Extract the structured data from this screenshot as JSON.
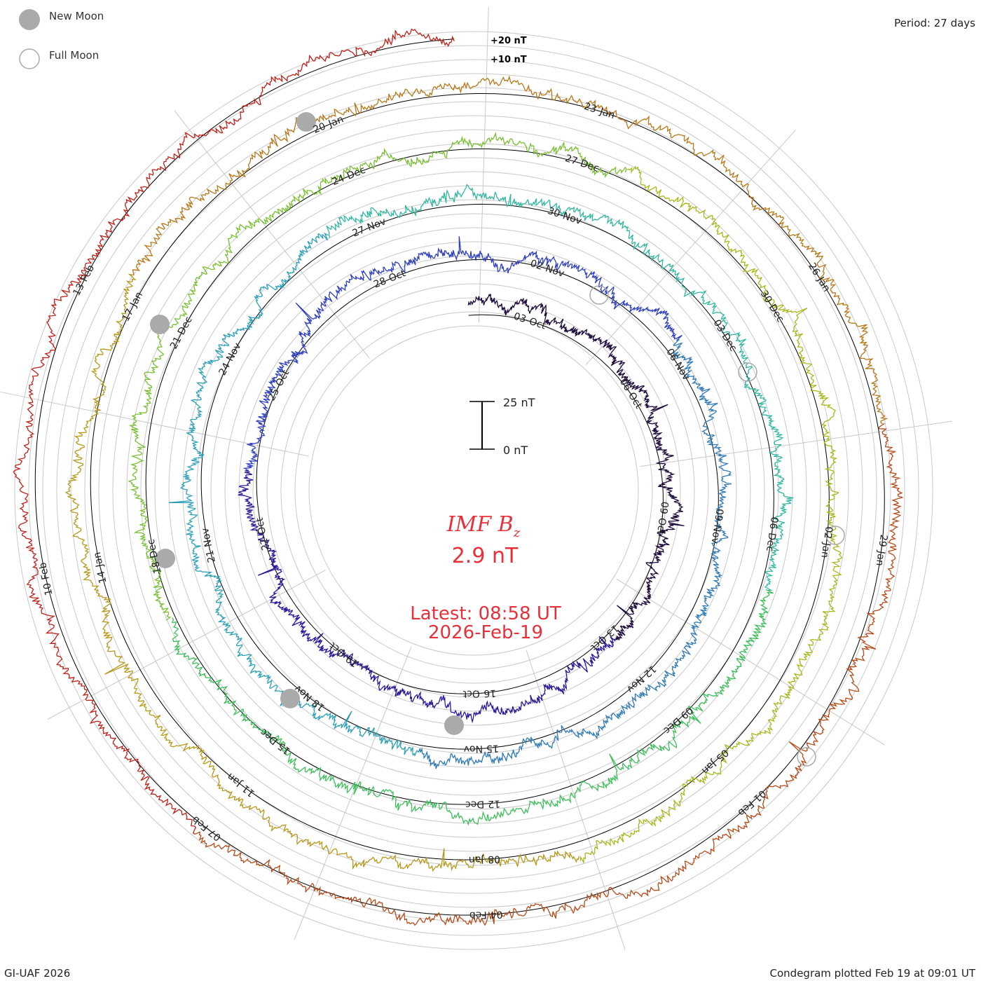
{
  "legend": {
    "new_moon": "New Moon",
    "full_moon": "Full Moon"
  },
  "corners": {
    "period": "Period: 27 days",
    "credit": "GI-UAF 2026",
    "plotted": "Condegram plotted Feb 19 at 09:01 UT"
  },
  "center": {
    "title_main": "IMF B",
    "title_sub": "z",
    "value": "2.9 nT",
    "latest": "Latest: 08:58 UT",
    "date": "2026-Feb-19"
  },
  "scale_bar": {
    "top": "25 nT",
    "bottom": "0 nT"
  },
  "chart_data": {
    "type": "line",
    "title": "IMF Bz",
    "period_days": 27,
    "ring_labels": [
      "+20 nT",
      "+10 nT"
    ],
    "colors": [
      "#1c0a3a",
      "#2a1a9a",
      "#2e3fc0",
      "#2f7ab8",
      "#2aa0b8",
      "#2fb8a0",
      "#3cbf5a",
      "#78c030",
      "#a8b818",
      "#b89818",
      "#b87818",
      "#b84a18",
      "#c02018"
    ],
    "date_labels": [
      "03-Oct",
      "06-Oct",
      "09-Oct",
      "13-Oct",
      "16-Oct",
      "19-Oct",
      "22-Oct",
      "25-Oct",
      "28-Oct",
      "02-Nov",
      "06-Nov",
      "09-Nov",
      "12-Nov",
      "15-Nov",
      "18-Nov",
      "21-Nov",
      "24-Nov",
      "27-Nov",
      "30-Nov",
      "03-Dec",
      "06-Dec",
      "09-Dec",
      "12-Dec",
      "15-Dec",
      "18-Dec",
      "21-Dec",
      "24-Dec",
      "27-Dec",
      "30-Dec",
      "02-Jan",
      "05-Jan",
      "08-Jan",
      "11-Jan",
      "14-Jan",
      "17-Jan",
      "20-Jan",
      "23-Jan",
      "26-Jan",
      "29-Jan",
      "01-Feb",
      "04-Feb",
      "07-Feb",
      "10-Feb",
      "13-Feb"
    ],
    "labeled_dates_by_ring": [
      [
        "03-Oct",
        "06-Oct",
        "09-Oct",
        "13-Oct",
        "16-Oct",
        "19-Oct",
        "22-Oct",
        "25-Oct",
        "28-Oct"
      ],
      [
        "02-Nov",
        "06-Nov",
        "09-Nov",
        "12-Nov",
        "15-Nov",
        "18-Nov",
        "21-Nov",
        "24-Nov",
        "27-Nov"
      ],
      [
        "30-Nov",
        "03-Dec",
        "06-Dec",
        "09-Dec",
        "12-Dec",
        "15-Dec",
        "18-Dec",
        "21-Dec",
        "24-Dec"
      ],
      [
        "27-Dec",
        "30-Dec",
        "02-Jan",
        "05-Jan",
        "08-Jan",
        "11-Jan",
        "14-Jan",
        "17-Jan",
        "20-Jan"
      ],
      [
        "23-Jan",
        "26-Jan",
        "29-Jan",
        "01-Feb",
        "04-Feb",
        "07-Feb",
        "10-Feb",
        "13-Feb"
      ]
    ],
    "latest_value_nT": 2.9,
    "latest_time": "08:58 UT",
    "latest_date": "2026-Feb-19"
  }
}
